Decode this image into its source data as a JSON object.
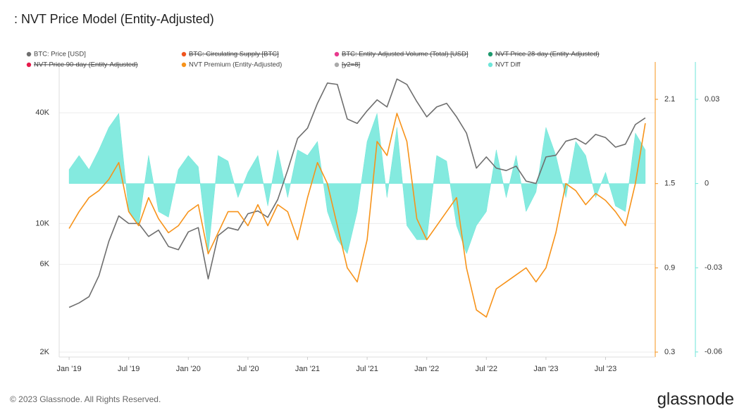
{
  "chart_data": {
    "type": "line",
    "title": ": NVT Price Model (Entity-Adjusted)",
    "footer": "© 2023 Glassnode. All Rights Reserved.",
    "brand": "glassnode",
    "x": [
      "2019-01",
      "2019-02",
      "2019-03",
      "2019-04",
      "2019-05",
      "2019-06",
      "2019-07",
      "2019-08",
      "2019-09",
      "2019-10",
      "2019-11",
      "2019-12",
      "2020-01",
      "2020-02",
      "2020-03",
      "2020-04",
      "2020-05",
      "2020-06",
      "2020-07",
      "2020-08",
      "2020-09",
      "2020-10",
      "2020-11",
      "2020-12",
      "2021-01",
      "2021-02",
      "2021-03",
      "2021-04",
      "2021-05",
      "2021-06",
      "2021-07",
      "2021-08",
      "2021-09",
      "2021-10",
      "2021-11",
      "2021-12",
      "2022-01",
      "2022-02",
      "2022-03",
      "2022-04",
      "2022-05",
      "2022-06",
      "2022-07",
      "2022-08",
      "2022-09",
      "2022-10",
      "2022-11",
      "2022-12",
      "2023-01",
      "2023-02",
      "2023-03",
      "2023-04",
      "2023-05",
      "2023-06",
      "2023-07",
      "2023-08",
      "2023-09",
      "2023-10",
      "2023-11"
    ],
    "xlim": [
      "2018-12",
      "2023-12"
    ],
    "xticks": [
      {
        "value": "2019-01",
        "label": "Jan '19"
      },
      {
        "value": "2019-07",
        "label": "Jul '19"
      },
      {
        "value": "2020-01",
        "label": "Jan '20"
      },
      {
        "value": "2020-07",
        "label": "Jul '20"
      },
      {
        "value": "2021-01",
        "label": "Jan '21"
      },
      {
        "value": "2021-07",
        "label": "Jul '21"
      },
      {
        "value": "2022-01",
        "label": "Jan '22"
      },
      {
        "value": "2022-07",
        "label": "Jul '22"
      },
      {
        "value": "2023-01",
        "label": "Jan '23"
      },
      {
        "value": "2023-07",
        "label": "Jul '23"
      }
    ],
    "ylog": true,
    "ylim": [
      1880,
      75500
    ],
    "yticks": [
      {
        "value": 2000,
        "label": "2K"
      },
      {
        "value": 6000,
        "label": "6K"
      },
      {
        "value": 10000,
        "label": "10K"
      },
      {
        "value": 40000,
        "label": "40K"
      }
    ],
    "y2lim": [
      0.265,
      2.366
    ],
    "y2ticks": [
      0.3,
      0.9,
      1.5,
      2.1
    ],
    "y2color": "#f7931a",
    "y3lim": [
      -0.0618,
      0.0433
    ],
    "y3ticks": [
      -0.06,
      -0.03,
      0,
      0.03
    ],
    "y3color": "#6ee6d9",
    "grid": true,
    "series": [
      {
        "name": "BTC: Price [USD]",
        "color": "#6e6e6e",
        "hidden": false,
        "axis": "y",
        "style": "line",
        "values": [
          3500,
          3700,
          4000,
          5200,
          8000,
          11000,
          10000,
          10000,
          8500,
          9200,
          7500,
          7200,
          9000,
          9500,
          5000,
          8600,
          9500,
          9200,
          11300,
          11700,
          10800,
          13500,
          19500,
          29000,
          33000,
          45000,
          58000,
          57000,
          37000,
          35000,
          41000,
          47000,
          43000,
          61000,
          57000,
          46000,
          38000,
          43000,
          45000,
          38000,
          31000,
          20000,
          23000,
          20000,
          19400,
          20500,
          17000,
          16500,
          23000,
          23500,
          28000,
          29000,
          27000,
          30500,
          29300,
          26000,
          27000,
          34500,
          37500
        ]
      },
      {
        "name": "BTC: Circulating Supply [BTC]",
        "color": "#f0541e",
        "hidden": true
      },
      {
        "name": "BTC: Entity-Adjusted Volume (Total) [USD]",
        "color": "#e8398d",
        "hidden": true
      },
      {
        "name": "NVT Price 28-day (Entity-Adjusted)",
        "color": "#1e9a6e",
        "hidden": true
      },
      {
        "name": "NVT Price 90-day (Entity-Adjusted)",
        "color": "#e6194b",
        "hidden": true
      },
      {
        "name": "NVT Premium (Entity-Adjusted)",
        "color": "#f7931a",
        "hidden": false,
        "axis": "y2",
        "style": "line",
        "values": [
          1.18,
          1.3,
          1.4,
          1.45,
          1.53,
          1.65,
          1.3,
          1.2,
          1.4,
          1.25,
          1.15,
          1.2,
          1.3,
          1.35,
          1.0,
          1.15,
          1.3,
          1.3,
          1.2,
          1.35,
          1.2,
          1.35,
          1.3,
          1.1,
          1.4,
          1.65,
          1.5,
          1.2,
          0.9,
          0.8,
          1.1,
          1.8,
          1.7,
          2.0,
          1.8,
          1.25,
          1.1,
          1.2,
          1.3,
          1.4,
          0.9,
          0.6,
          0.55,
          0.75,
          0.8,
          0.85,
          0.9,
          0.8,
          0.9,
          1.15,
          1.5,
          1.45,
          1.35,
          1.43,
          1.38,
          1.3,
          1.2,
          1.5,
          1.93
        ]
      },
      {
        "name": "[y2=8]",
        "color": "#aaaaaa",
        "hidden": true
      },
      {
        "name": "NVT Diff",
        "color": "#6ee6d9",
        "hidden": false,
        "axis": "y3",
        "style": "area",
        "values": [
          0.005,
          0.01,
          0.005,
          0.012,
          0.02,
          0.025,
          -0.01,
          -0.015,
          0.01,
          -0.01,
          -0.012,
          0.005,
          0.01,
          0.006,
          -0.025,
          0.01,
          0.008,
          -0.005,
          0.004,
          0.01,
          -0.008,
          0.012,
          -0.005,
          0.012,
          0.01,
          0.015,
          -0.01,
          -0.02,
          -0.025,
          -0.01,
          0.015,
          0.025,
          -0.005,
          0.02,
          -0.015,
          -0.02,
          -0.02,
          0.01,
          0.008,
          -0.015,
          -0.025,
          -0.015,
          -0.01,
          0.012,
          -0.005,
          0.01,
          -0.01,
          -0.003,
          0.02,
          0.01,
          -0.005,
          0.015,
          0.01,
          -0.005,
          0.004,
          -0.008,
          -0.01,
          0.018,
          0.012
        ]
      }
    ]
  }
}
